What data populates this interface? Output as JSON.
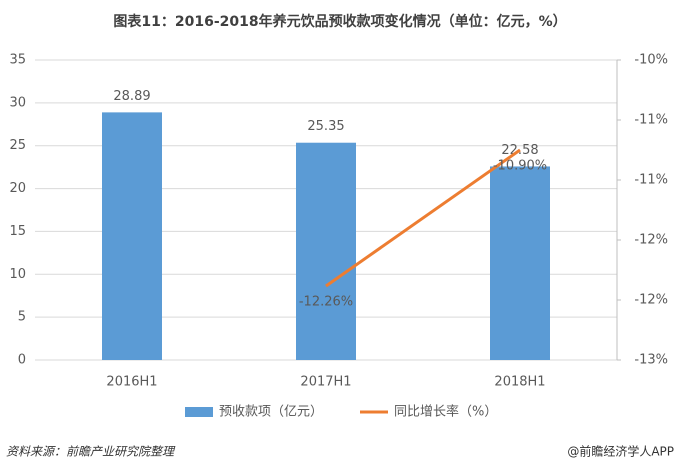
{
  "chart_data": {
    "type": "bar-line",
    "title": "图表11：2016-2018年养元饮品预收款项变化情况（单位：亿元，%）",
    "categories": [
      "2016H1",
      "2017H1",
      "2018H1"
    ],
    "series": [
      {
        "name": "预收款项（亿元）",
        "type": "bar",
        "color": "#5b9bd5",
        "values": [
          28.89,
          25.35,
          22.58
        ]
      },
      {
        "name": "同比增长率（%）",
        "type": "line",
        "axis": "y2",
        "color": "#ed7d31",
        "values": [
          null,
          -12.26,
          -10.9
        ],
        "value_labels": [
          null,
          "-12.26%",
          "-10.90%"
        ]
      }
    ],
    "ylim": [
      0,
      35
    ],
    "yticks": [
      0,
      5,
      10,
      15,
      20,
      25,
      30,
      35
    ],
    "y2lim": [
      -13,
      -10
    ],
    "y2ticks": [
      {
        "value": -13,
        "label": "-13%"
      },
      {
        "value": -12.4,
        "label": "-12%"
      },
      {
        "value": -11.8,
        "label": "-12%"
      },
      {
        "value": -11.2,
        "label": "-11%"
      },
      {
        "value": -10.6,
        "label": "-11%"
      },
      {
        "value": -10,
        "label": "-10%"
      }
    ],
    "grid": true,
    "legend": "bottom",
    "source": "资料来源：前瞻产业研究院整理",
    "credit": "@前瞻经济学人APP"
  }
}
